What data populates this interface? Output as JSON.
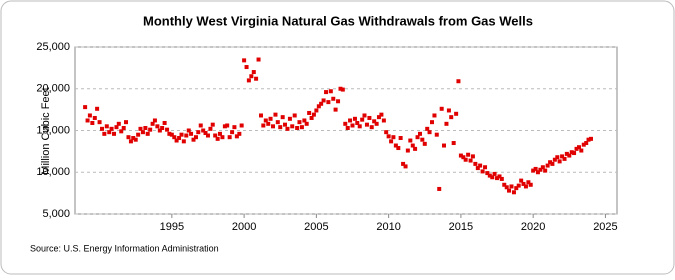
{
  "chart_data": {
    "type": "scatter",
    "title": "Monthly West Virginia Natural Gas Withdrawals from Gas Wells",
    "y_label": "Million Cubic Feet",
    "source": "Source: U.S. Energy Information Administration",
    "color": "#e00000",
    "grid": true,
    "xlim": [
      1988.3,
      2025.8
    ],
    "xticks": [
      1995,
      2000,
      2005,
      2010,
      2015,
      2020,
      2025
    ],
    "ylim": [
      5000,
      25000
    ],
    "yticks": [
      {
        "value": 5000,
        "label": "5,000"
      },
      {
        "value": 10000,
        "label": "10,000"
      },
      {
        "value": 15000,
        "label": "15,000"
      },
      {
        "value": 20000,
        "label": "20,000"
      },
      {
        "value": 25000,
        "label": "25,000"
      }
    ],
    "x": [
      1989.0,
      1989.17,
      1989.33,
      1989.5,
      1989.67,
      1989.83,
      1990.0,
      1990.17,
      1990.33,
      1990.5,
      1990.67,
      1990.83,
      1991.0,
      1991.17,
      1991.33,
      1991.5,
      1991.67,
      1991.83,
      1992.0,
      1992.17,
      1992.33,
      1992.5,
      1992.67,
      1992.83,
      1993.0,
      1993.17,
      1993.33,
      1993.5,
      1993.67,
      1993.83,
      1994.0,
      1994.17,
      1994.33,
      1994.5,
      1994.67,
      1994.83,
      1995.0,
      1995.17,
      1995.33,
      1995.5,
      1995.67,
      1995.83,
      1996.0,
      1996.17,
      1996.33,
      1996.5,
      1996.67,
      1996.83,
      1997.0,
      1997.17,
      1997.33,
      1997.5,
      1997.67,
      1997.83,
      1998.0,
      1998.17,
      1998.33,
      1998.5,
      1998.67,
      1998.83,
      1999.0,
      1999.17,
      1999.33,
      1999.5,
      1999.67,
      1999.83,
      2000.0,
      2000.17,
      2000.33,
      2000.5,
      2000.67,
      2000.83,
      2001.0,
      2001.17,
      2001.33,
      2001.5,
      2001.67,
      2001.83,
      2002.0,
      2002.17,
      2002.33,
      2002.5,
      2002.67,
      2002.83,
      2003.0,
      2003.17,
      2003.33,
      2003.5,
      2003.67,
      2003.83,
      2004.0,
      2004.17,
      2004.33,
      2004.5,
      2004.67,
      2004.83,
      2005.0,
      2005.17,
      2005.33,
      2005.5,
      2005.67,
      2005.83,
      2006.0,
      2006.17,
      2006.33,
      2006.5,
      2006.67,
      2006.83,
      2007.0,
      2007.17,
      2007.33,
      2007.5,
      2007.67,
      2007.83,
      2008.0,
      2008.17,
      2008.33,
      2008.5,
      2008.67,
      2008.83,
      2009.0,
      2009.17,
      2009.33,
      2009.5,
      2009.67,
      2009.83,
      2010.0,
      2010.17,
      2010.33,
      2010.5,
      2010.67,
      2010.83,
      2011.0,
      2011.17,
      2011.33,
      2011.5,
      2011.67,
      2011.83,
      2012.0,
      2012.17,
      2012.33,
      2012.5,
      2012.67,
      2012.83,
      2013.0,
      2013.17,
      2013.33,
      2013.5,
      2013.67,
      2013.83,
      2014.0,
      2014.17,
      2014.33,
      2014.5,
      2014.67,
      2014.83,
      2015.0,
      2015.17,
      2015.33,
      2015.5,
      2015.67,
      2015.83,
      2016.0,
      2016.17,
      2016.33,
      2016.5,
      2016.67,
      2016.83,
      2017.0,
      2017.17,
      2017.33,
      2017.5,
      2017.67,
      2017.83,
      2018.0,
      2018.17,
      2018.33,
      2018.5,
      2018.67,
      2018.83,
      2019.0,
      2019.17,
      2019.33,
      2019.5,
      2019.67,
      2019.83,
      2020.0,
      2020.17,
      2020.33,
      2020.5,
      2020.67,
      2020.83,
      2021.0,
      2021.17,
      2021.33,
      2021.5,
      2021.67,
      2021.83,
      2022.0,
      2022.17,
      2022.33,
      2022.5,
      2022.67,
      2022.83,
      2023.0,
      2023.17,
      2023.33,
      2023.5,
      2023.67,
      2023.83,
      2024.0
    ],
    "values": [
      17800,
      16200,
      16800,
      15900,
      16500,
      17600,
      16000,
      15200,
      14600,
      15500,
      14800,
      15200,
      14600,
      15400,
      15800,
      14900,
      15300,
      16000,
      14200,
      13700,
      14100,
      13900,
      14500,
      15200,
      14800,
      15300,
      14600,
      15100,
      15800,
      16200,
      15500,
      15000,
      15300,
      15900,
      15100,
      14600,
      14500,
      14200,
      13800,
      14100,
      14500,
      13700,
      14400,
      15000,
      14600,
      13900,
      14200,
      14800,
      15600,
      15000,
      14700,
      14400,
      15200,
      15700,
      14400,
      14000,
      14600,
      14200,
      15500,
      15600,
      14200,
      14800,
      15400,
      14300,
      14600,
      15600,
      23400,
      22600,
      21000,
      21500,
      22000,
      21200,
      23500,
      16800,
      15600,
      16200,
      15800,
      16400,
      15500,
      16900,
      16000,
      15400,
      16600,
      15700,
      15200,
      16400,
      15500,
      16800,
      15300,
      16000,
      15400,
      16200,
      15800,
      17100,
      16500,
      16900,
      17400,
      17900,
      18200,
      18600,
      19600,
      18400,
      19700,
      18800,
      17500,
      18500,
      20000,
      19900,
      15800,
      15300,
      16200,
      15600,
      16400,
      15900,
      15500,
      16300,
      16800,
      15700,
      16500,
      15400,
      16100,
      15800,
      16600,
      16900,
      16200,
      14800,
      14300,
      13700,
      14200,
      13200,
      12900,
      14100,
      11000,
      10700,
      12600,
      13800,
      13200,
      12800,
      14200,
      14600,
      13900,
      13400,
      15200,
      14800,
      16000,
      16800,
      14500,
      8000,
      17600,
      13200,
      15800,
      17400,
      16600,
      13500,
      17000,
      20900,
      12000,
      11800,
      11500,
      12100,
      11400,
      11900,
      11000,
      10500,
      10800,
      10100,
      10600,
      9900,
      9600,
      9400,
      9800,
      9300,
      9500,
      9200,
      8500,
      8200,
      7800,
      8300,
      7600,
      8100,
      8400,
      9000,
      8600,
      8300,
      8800,
      8500,
      10200,
      10400,
      10000,
      10300,
      10600,
      10200,
      10800,
      11200,
      11000,
      11500,
      11800,
      11300,
      11900,
      11600,
      12200,
      12000,
      12400,
      12300,
      12800,
      13000,
      12600,
      13300,
      13500,
      13900,
      14000
    ]
  }
}
